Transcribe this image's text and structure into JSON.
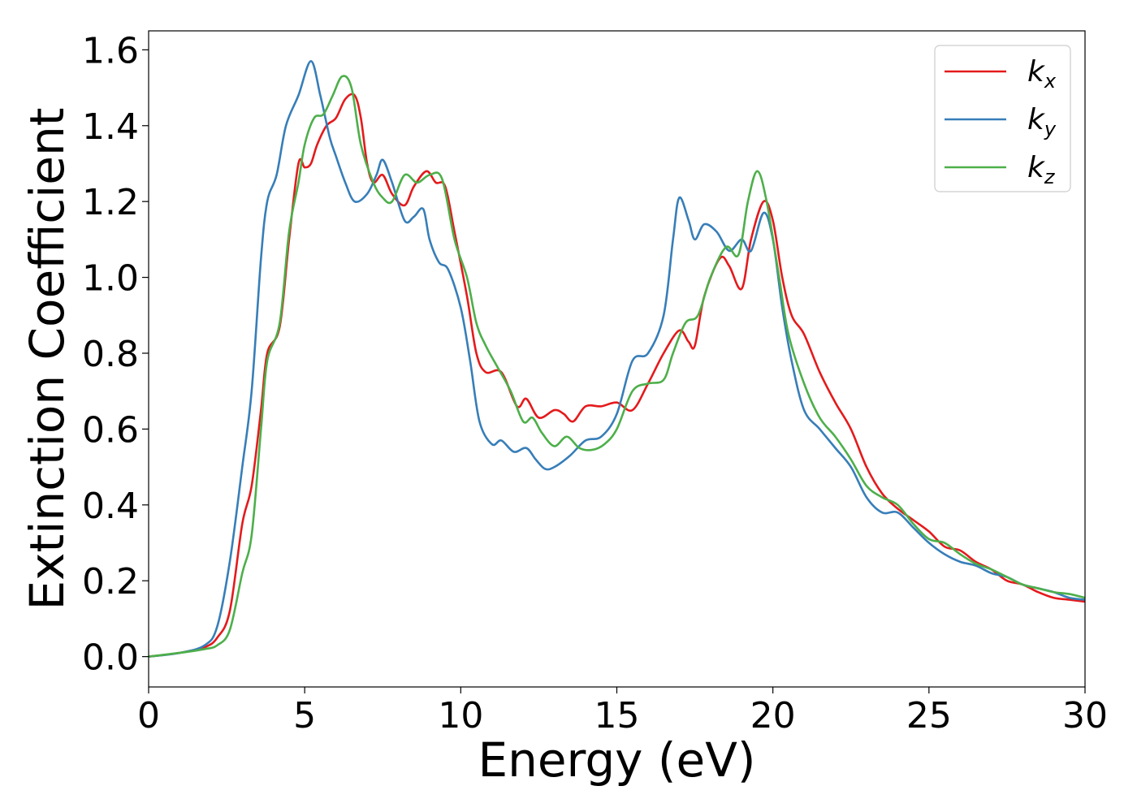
{
  "chart_data": {
    "type": "line",
    "title": "",
    "xlabel": "Energy (eV)",
    "ylabel": "Extinction Coefficient",
    "xlim": [
      0,
      30
    ],
    "ylim": [
      -0.08,
      1.65
    ],
    "xticks": [
      0,
      5,
      10,
      15,
      20,
      25,
      30
    ],
    "xtick_labels": [
      "0",
      "5",
      "10",
      "15",
      "20",
      "25",
      "30"
    ],
    "yticks": [
      0.0,
      0.2,
      0.4,
      0.6,
      0.8,
      1.0,
      1.2,
      1.4,
      1.6
    ],
    "ytick_labels": [
      "0.0",
      "0.2",
      "0.4",
      "0.6",
      "0.8",
      "1.0",
      "1.2",
      "1.4",
      "1.6"
    ],
    "grid": false,
    "legend_position": "top-right",
    "series": [
      {
        "name": "k_x",
        "label_base": "k",
        "label_sub": "x",
        "color": "#e41a1c",
        "points": [
          [
            0,
            0
          ],
          [
            1,
            0.01
          ],
          [
            1.8,
            0.025
          ],
          [
            2.2,
            0.05
          ],
          [
            2.6,
            0.12
          ],
          [
            3.0,
            0.35
          ],
          [
            3.3,
            0.45
          ],
          [
            3.6,
            0.65
          ],
          [
            3.8,
            0.8
          ],
          [
            4.2,
            0.87
          ],
          [
            4.5,
            1.1
          ],
          [
            4.8,
            1.3
          ],
          [
            5.0,
            1.29
          ],
          [
            5.2,
            1.3
          ],
          [
            5.4,
            1.35
          ],
          [
            5.7,
            1.4
          ],
          [
            6.0,
            1.42
          ],
          [
            6.3,
            1.47
          ],
          [
            6.6,
            1.48
          ],
          [
            6.8,
            1.42
          ],
          [
            7.0,
            1.3
          ],
          [
            7.2,
            1.25
          ],
          [
            7.5,
            1.27
          ],
          [
            7.8,
            1.22
          ],
          [
            8.2,
            1.19
          ],
          [
            8.5,
            1.24
          ],
          [
            8.9,
            1.28
          ],
          [
            9.2,
            1.25
          ],
          [
            9.5,
            1.24
          ],
          [
            9.8,
            1.12
          ],
          [
            10.2,
            0.95
          ],
          [
            10.5,
            0.8
          ],
          [
            10.8,
            0.75
          ],
          [
            11.3,
            0.75
          ],
          [
            11.8,
            0.66
          ],
          [
            12.1,
            0.68
          ],
          [
            12.5,
            0.63
          ],
          [
            13.0,
            0.65
          ],
          [
            13.3,
            0.64
          ],
          [
            13.6,
            0.62
          ],
          [
            14.0,
            0.66
          ],
          [
            14.5,
            0.66
          ],
          [
            15.0,
            0.67
          ],
          [
            15.5,
            0.65
          ],
          [
            16.0,
            0.72
          ],
          [
            16.5,
            0.8
          ],
          [
            17.0,
            0.86
          ],
          [
            17.3,
            0.83
          ],
          [
            17.5,
            0.82
          ],
          [
            17.8,
            0.95
          ],
          [
            18.3,
            1.05
          ],
          [
            18.6,
            1.03
          ],
          [
            19.0,
            0.97
          ],
          [
            19.3,
            1.1
          ],
          [
            19.7,
            1.2
          ],
          [
            20.0,
            1.15
          ],
          [
            20.3,
            1.0
          ],
          [
            20.6,
            0.9
          ],
          [
            21.0,
            0.85
          ],
          [
            21.5,
            0.75
          ],
          [
            22.0,
            0.67
          ],
          [
            22.5,
            0.6
          ],
          [
            23.0,
            0.5
          ],
          [
            23.5,
            0.43
          ],
          [
            24.0,
            0.39
          ],
          [
            24.5,
            0.36
          ],
          [
            25.0,
            0.33
          ],
          [
            25.5,
            0.29
          ],
          [
            26.0,
            0.28
          ],
          [
            26.5,
            0.25
          ],
          [
            27.0,
            0.23
          ],
          [
            27.5,
            0.2
          ],
          [
            28.0,
            0.19
          ],
          [
            28.5,
            0.17
          ],
          [
            29.0,
            0.155
          ],
          [
            29.5,
            0.15
          ],
          [
            30,
            0.145
          ]
        ]
      },
      {
        "name": "k_y",
        "label_base": "k",
        "label_sub": "y",
        "color": "#377eb8",
        "points": [
          [
            0,
            0
          ],
          [
            1,
            0.01
          ],
          [
            1.8,
            0.03
          ],
          [
            2.2,
            0.08
          ],
          [
            2.6,
            0.25
          ],
          [
            3.0,
            0.5
          ],
          [
            3.3,
            0.7
          ],
          [
            3.6,
            1.05
          ],
          [
            3.8,
            1.2
          ],
          [
            4.1,
            1.27
          ],
          [
            4.4,
            1.4
          ],
          [
            4.8,
            1.48
          ],
          [
            5.2,
            1.57
          ],
          [
            5.5,
            1.48
          ],
          [
            5.8,
            1.37
          ],
          [
            6.0,
            1.32
          ],
          [
            6.3,
            1.25
          ],
          [
            6.6,
            1.2
          ],
          [
            7.0,
            1.22
          ],
          [
            7.3,
            1.27
          ],
          [
            7.5,
            1.31
          ],
          [
            7.8,
            1.25
          ],
          [
            8.2,
            1.15
          ],
          [
            8.5,
            1.16
          ],
          [
            8.8,
            1.18
          ],
          [
            9.0,
            1.1
          ],
          [
            9.3,
            1.04
          ],
          [
            9.6,
            1.02
          ],
          [
            10.0,
            0.92
          ],
          [
            10.3,
            0.78
          ],
          [
            10.6,
            0.62
          ],
          [
            11.0,
            0.56
          ],
          [
            11.3,
            0.57
          ],
          [
            11.7,
            0.54
          ],
          [
            12.1,
            0.55
          ],
          [
            12.4,
            0.52
          ],
          [
            12.7,
            0.495
          ],
          [
            13.0,
            0.5
          ],
          [
            13.5,
            0.53
          ],
          [
            14.0,
            0.57
          ],
          [
            14.5,
            0.58
          ],
          [
            15.0,
            0.64
          ],
          [
            15.5,
            0.78
          ],
          [
            16.0,
            0.8
          ],
          [
            16.5,
            0.9
          ],
          [
            16.8,
            1.1
          ],
          [
            17.0,
            1.21
          ],
          [
            17.3,
            1.15
          ],
          [
            17.5,
            1.1
          ],
          [
            17.8,
            1.14
          ],
          [
            18.2,
            1.12
          ],
          [
            18.6,
            1.07
          ],
          [
            19.0,
            1.1
          ],
          [
            19.3,
            1.07
          ],
          [
            19.7,
            1.17
          ],
          [
            20.0,
            1.1
          ],
          [
            20.3,
            0.92
          ],
          [
            20.6,
            0.78
          ],
          [
            21.0,
            0.65
          ],
          [
            21.5,
            0.6
          ],
          [
            22.0,
            0.55
          ],
          [
            22.5,
            0.5
          ],
          [
            23.0,
            0.42
          ],
          [
            23.5,
            0.38
          ],
          [
            24.0,
            0.38
          ],
          [
            24.5,
            0.34
          ],
          [
            25.0,
            0.3
          ],
          [
            25.5,
            0.27
          ],
          [
            26.0,
            0.25
          ],
          [
            26.5,
            0.24
          ],
          [
            27.0,
            0.22
          ],
          [
            27.5,
            0.21
          ],
          [
            28.0,
            0.19
          ],
          [
            28.5,
            0.18
          ],
          [
            29.0,
            0.17
          ],
          [
            29.5,
            0.155
          ],
          [
            30,
            0.15
          ]
        ]
      },
      {
        "name": "k_z",
        "label_base": "k",
        "label_sub": "z",
        "color": "#4daf4a",
        "points": [
          [
            0,
            0
          ],
          [
            1,
            0.01
          ],
          [
            1.8,
            0.02
          ],
          [
            2.2,
            0.03
          ],
          [
            2.6,
            0.07
          ],
          [
            3.0,
            0.22
          ],
          [
            3.3,
            0.32
          ],
          [
            3.6,
            0.6
          ],
          [
            3.8,
            0.78
          ],
          [
            4.2,
            0.88
          ],
          [
            4.5,
            1.12
          ],
          [
            4.8,
            1.25
          ],
          [
            5.0,
            1.35
          ],
          [
            5.3,
            1.42
          ],
          [
            5.6,
            1.43
          ],
          [
            5.9,
            1.48
          ],
          [
            6.2,
            1.53
          ],
          [
            6.5,
            1.5
          ],
          [
            6.8,
            1.35
          ],
          [
            7.2,
            1.25
          ],
          [
            7.5,
            1.21
          ],
          [
            7.8,
            1.2
          ],
          [
            8.2,
            1.27
          ],
          [
            8.6,
            1.25
          ],
          [
            9.0,
            1.27
          ],
          [
            9.4,
            1.26
          ],
          [
            9.8,
            1.1
          ],
          [
            10.2,
            1.0
          ],
          [
            10.5,
            0.88
          ],
          [
            10.8,
            0.82
          ],
          [
            11.2,
            0.76
          ],
          [
            11.6,
            0.7
          ],
          [
            12.0,
            0.62
          ],
          [
            12.3,
            0.63
          ],
          [
            12.6,
            0.59
          ],
          [
            13.0,
            0.555
          ],
          [
            13.4,
            0.58
          ],
          [
            13.8,
            0.55
          ],
          [
            14.2,
            0.545
          ],
          [
            14.6,
            0.56
          ],
          [
            15.0,
            0.6
          ],
          [
            15.5,
            0.7
          ],
          [
            16.0,
            0.72
          ],
          [
            16.5,
            0.73
          ],
          [
            16.8,
            0.8
          ],
          [
            17.2,
            0.88
          ],
          [
            17.6,
            0.9
          ],
          [
            18.0,
            1.0
          ],
          [
            18.5,
            1.08
          ],
          [
            18.9,
            1.06
          ],
          [
            19.2,
            1.2
          ],
          [
            19.5,
            1.28
          ],
          [
            19.8,
            1.2
          ],
          [
            20.2,
            1.0
          ],
          [
            20.5,
            0.85
          ],
          [
            21.0,
            0.72
          ],
          [
            21.5,
            0.63
          ],
          [
            22.0,
            0.58
          ],
          [
            22.5,
            0.52
          ],
          [
            23.0,
            0.45
          ],
          [
            23.5,
            0.42
          ],
          [
            24.0,
            0.4
          ],
          [
            24.5,
            0.35
          ],
          [
            25.0,
            0.31
          ],
          [
            25.5,
            0.3
          ],
          [
            26.0,
            0.27
          ],
          [
            26.5,
            0.245
          ],
          [
            27.0,
            0.23
          ],
          [
            27.5,
            0.21
          ],
          [
            28.0,
            0.19
          ],
          [
            28.5,
            0.18
          ],
          [
            29.0,
            0.17
          ],
          [
            29.5,
            0.165
          ],
          [
            30,
            0.155
          ]
        ]
      }
    ]
  }
}
